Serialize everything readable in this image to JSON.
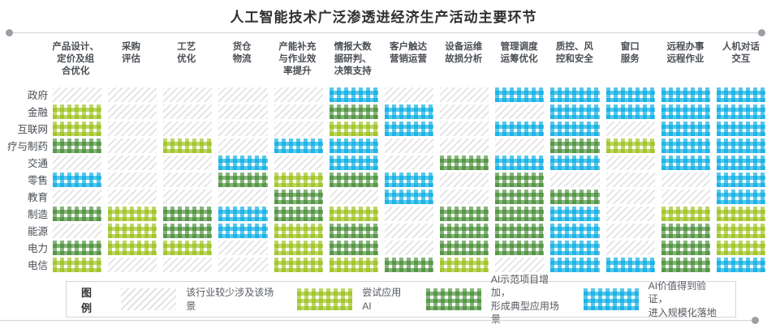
{
  "title": "人工智能技术广泛渗透进经济生产活动主要环节",
  "chart_data": {
    "type": "heatmap",
    "title": "人工智能技术广泛渗透进经济生产活动主要环节",
    "columns": [
      "产品设计、\n定价及组\n合优化",
      "采购\n评估",
      "工艺\n优化",
      "货仓\n物流",
      "产能补充\n与作业效\n率提升",
      "情报大数\n据研判、\n决策支持",
      "客户触达\n营销运营",
      "设备运维\n故损分析",
      "管理调度\n运筹优化",
      "质控、风\n控和安全",
      "窗口\n服务",
      "远程办事\n远程作业",
      "人机对话\n交互"
    ],
    "rows": [
      "政府",
      "金融",
      "互联网",
      "疗与制药",
      "交通",
      "零售",
      "教育",
      "制造",
      "能源",
      "电力",
      "电信"
    ],
    "levels": [
      "该行业较少涉及该场景",
      "尝试应用AI",
      "AI示范项目增加，形成典型应用场景",
      "AI价值得到验证，进入规模化落地"
    ],
    "values": [
      [
        0,
        0,
        0,
        0,
        0,
        3,
        0,
        0,
        3,
        3,
        3,
        3,
        3
      ],
      [
        1,
        0,
        0,
        0,
        0,
        2,
        3,
        0,
        0,
        3,
        3,
        3,
        3
      ],
      [
        1,
        0,
        0,
        0,
        0,
        1,
        3,
        0,
        3,
        3,
        0,
        3,
        3
      ],
      [
        2,
        0,
        1,
        0,
        3,
        3,
        0,
        0,
        0,
        2,
        1,
        3,
        3
      ],
      [
        0,
        0,
        0,
        3,
        0,
        3,
        0,
        2,
        3,
        3,
        0,
        3,
        3
      ],
      [
        3,
        0,
        0,
        2,
        1,
        2,
        3,
        0,
        2,
        0,
        0,
        0,
        3
      ],
      [
        0,
        0,
        0,
        0,
        2,
        0,
        3,
        0,
        2,
        2,
        0,
        0,
        3
      ],
      [
        2,
        1,
        2,
        3,
        2,
        1,
        0,
        2,
        2,
        3,
        0,
        1,
        1
      ],
      [
        0,
        1,
        2,
        3,
        1,
        2,
        0,
        2,
        2,
        3,
        0,
        2,
        1
      ],
      [
        2,
        1,
        1,
        0,
        1,
        2,
        0,
        2,
        2,
        3,
        0,
        2,
        1
      ],
      [
        1,
        0,
        0,
        0,
        1,
        1,
        2,
        1,
        0,
        3,
        3,
        2,
        3
      ]
    ],
    "legend_position": "bottom",
    "grid": false
  },
  "legend": {
    "title": "图例",
    "items": [
      {
        "level": 0,
        "label": "该行业较少涉及该场景"
      },
      {
        "level": 1,
        "label": "尝试应用AI"
      },
      {
        "level": 2,
        "label": "AI示范项目增加，\n形成典型应用场景"
      },
      {
        "level": 3,
        "label": "AI价值得到验证，\n进入规模化落地"
      }
    ]
  },
  "colors": {
    "light_green": "#9abe14",
    "dark_green": "#3a8628",
    "blue": "#00aae2",
    "hatch_gray": "#e2e2e2",
    "rule_gray": "#cfd3d6"
  }
}
